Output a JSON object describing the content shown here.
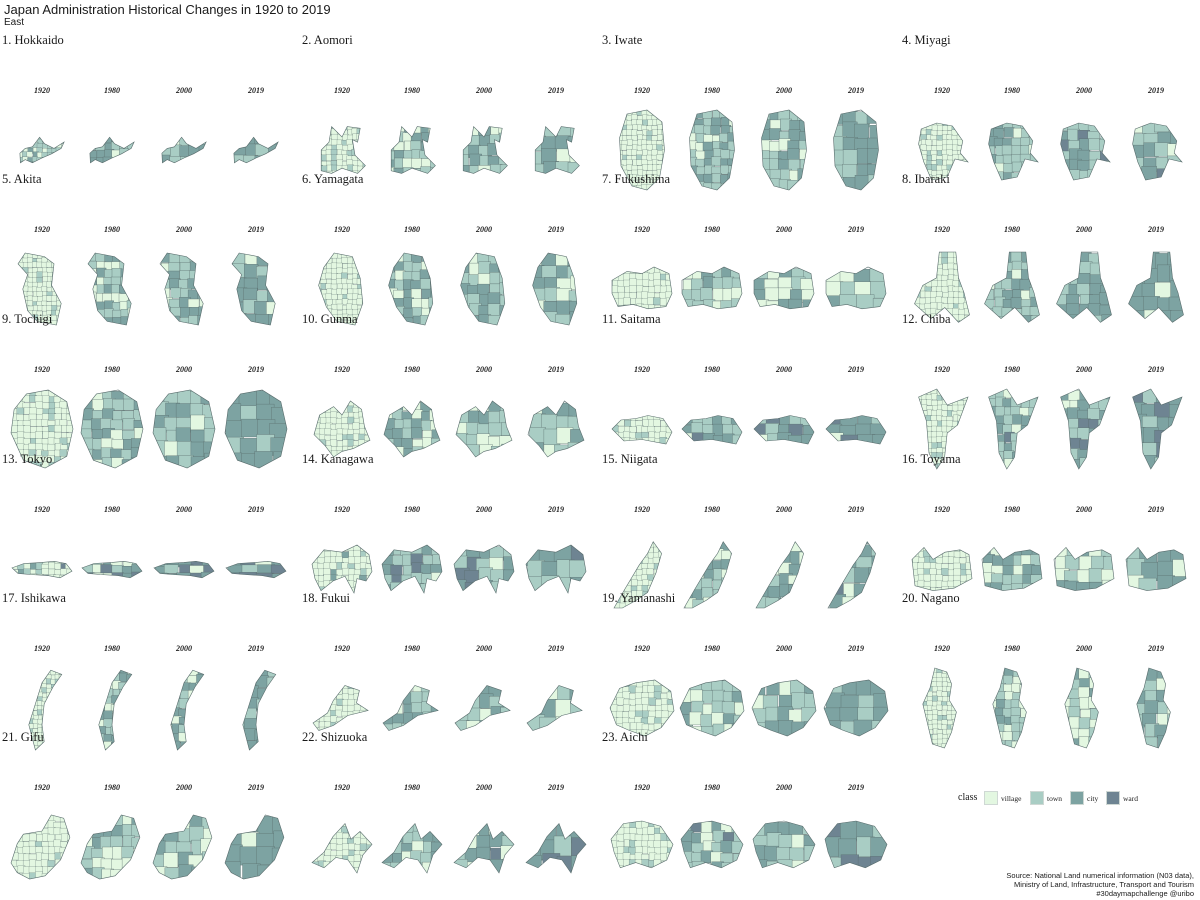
{
  "title": "Japan Administration Historical Changes in 1920 to 2019",
  "subtitle": "East",
  "years": [
    "1920",
    "1980",
    "2000",
    "2019"
  ],
  "colors": {
    "village": "#e3f7e1",
    "town": "#a9cdc4",
    "city": "#7da3a2",
    "ward": "#6e8492",
    "border": "#586c6c"
  },
  "legend": {
    "title": "class",
    "items": [
      {
        "key": "village",
        "label": "village"
      },
      {
        "key": "town",
        "label": "town"
      },
      {
        "key": "city",
        "label": "city"
      },
      {
        "key": "ward",
        "label": "ward"
      }
    ]
  },
  "prefectures": [
    {
      "label": "1. Hokkaido",
      "shape": "hokkaido",
      "mix": [
        [
          0.35,
          0.45,
          0.2,
          0
        ],
        [
          0.05,
          0.5,
          0.45,
          0
        ],
        [
          0.03,
          0.47,
          0.5,
          0
        ],
        [
          0.02,
          0.45,
          0.53,
          0
        ]
      ]
    },
    {
      "label": "2. Aomori",
      "shape": "aomori",
      "mix": [
        [
          0.8,
          0.2,
          0,
          0
        ],
        [
          0.35,
          0.45,
          0.2,
          0
        ],
        [
          0.3,
          0.45,
          0.25,
          0
        ],
        [
          0.1,
          0.5,
          0.4,
          0
        ]
      ]
    },
    {
      "label": "3. Iwate",
      "shape": "iwate",
      "mix": [
        [
          0.9,
          0.1,
          0,
          0
        ],
        [
          0.2,
          0.5,
          0.3,
          0
        ],
        [
          0.15,
          0.5,
          0.35,
          0
        ],
        [
          0.05,
          0.3,
          0.65,
          0
        ]
      ]
    },
    {
      "label": "4. Miyagi",
      "shape": "miyagi",
      "mix": [
        [
          0.85,
          0.15,
          0,
          0
        ],
        [
          0.1,
          0.6,
          0.3,
          0
        ],
        [
          0.05,
          0.55,
          0.35,
          0.05
        ],
        [
          0.02,
          0.4,
          0.5,
          0.08
        ]
      ]
    },
    {
      "label": "5. Akita",
      "shape": "akita",
      "mix": [
        [
          0.9,
          0.1,
          0,
          0
        ],
        [
          0.3,
          0.4,
          0.3,
          0
        ],
        [
          0.25,
          0.45,
          0.3,
          0
        ],
        [
          0.05,
          0.2,
          0.75,
          0
        ]
      ]
    },
    {
      "label": "6. Yamagata",
      "shape": "yamagata",
      "mix": [
        [
          0.9,
          0.1,
          0,
          0
        ],
        [
          0.2,
          0.5,
          0.3,
          0
        ],
        [
          0.2,
          0.5,
          0.3,
          0
        ],
        [
          0.1,
          0.45,
          0.45,
          0
        ]
      ]
    },
    {
      "label": "7. Fukushima",
      "shape": "fukushima",
      "mix": [
        [
          0.9,
          0.1,
          0,
          0
        ],
        [
          0.3,
          0.4,
          0.3,
          0
        ],
        [
          0.3,
          0.4,
          0.3,
          0
        ],
        [
          0.2,
          0.4,
          0.4,
          0
        ]
      ]
    },
    {
      "label": "8. Ibaraki",
      "shape": "ibaraki",
      "mix": [
        [
          0.9,
          0.1,
          0,
          0
        ],
        [
          0.2,
          0.5,
          0.3,
          0
        ],
        [
          0.15,
          0.45,
          0.4,
          0
        ],
        [
          0.05,
          0.2,
          0.75,
          0
        ]
      ]
    },
    {
      "label": "9. Tochigi",
      "shape": "tochigi",
      "mix": [
        [
          0.85,
          0.15,
          0,
          0
        ],
        [
          0.15,
          0.5,
          0.35,
          0
        ],
        [
          0.1,
          0.5,
          0.4,
          0
        ],
        [
          0.02,
          0.25,
          0.73,
          0
        ]
      ]
    },
    {
      "label": "10. Gunma",
      "shape": "gunma",
      "mix": [
        [
          0.9,
          0.1,
          0,
          0
        ],
        [
          0.3,
          0.45,
          0.25,
          0
        ],
        [
          0.3,
          0.45,
          0.25,
          0
        ],
        [
          0.15,
          0.45,
          0.4,
          0
        ]
      ]
    },
    {
      "label": "11. Saitama",
      "shape": "saitama",
      "mix": [
        [
          0.9,
          0.1,
          0,
          0
        ],
        [
          0.1,
          0.4,
          0.45,
          0.05
        ],
        [
          0.05,
          0.35,
          0.5,
          0.1
        ],
        [
          0.02,
          0.2,
          0.63,
          0.15
        ]
      ]
    },
    {
      "label": "12. Chiba",
      "shape": "chiba",
      "mix": [
        [
          0.85,
          0.15,
          0,
          0
        ],
        [
          0.1,
          0.45,
          0.4,
          0.05
        ],
        [
          0.05,
          0.4,
          0.45,
          0.1
        ],
        [
          0.02,
          0.2,
          0.65,
          0.13
        ]
      ]
    },
    {
      "label": "13. Tokyo",
      "shape": "tokyo",
      "mix": [
        [
          0.7,
          0.2,
          0.05,
          0.05
        ],
        [
          0.05,
          0.2,
          0.45,
          0.3
        ],
        [
          0.05,
          0.15,
          0.5,
          0.3
        ],
        [
          0.05,
          0.15,
          0.5,
          0.3
        ]
      ]
    },
    {
      "label": "14. Kanagawa",
      "shape": "kanagawa",
      "mix": [
        [
          0.8,
          0.15,
          0.05,
          0
        ],
        [
          0.05,
          0.45,
          0.3,
          0.2
        ],
        [
          0.05,
          0.4,
          0.35,
          0.2
        ],
        [
          0.02,
          0.3,
          0.4,
          0.28
        ]
      ]
    },
    {
      "label": "15. Niigata",
      "shape": "niigata",
      "mix": [
        [
          0.85,
          0.15,
          0,
          0
        ],
        [
          0.2,
          0.5,
          0.3,
          0
        ],
        [
          0.2,
          0.45,
          0.35,
          0
        ],
        [
          0.05,
          0.2,
          0.7,
          0.05
        ]
      ]
    },
    {
      "label": "16. Toyama",
      "shape": "toyama",
      "mix": [
        [
          0.85,
          0.15,
          0,
          0
        ],
        [
          0.2,
          0.4,
          0.4,
          0
        ],
        [
          0.15,
          0.4,
          0.45,
          0
        ],
        [
          0.05,
          0.15,
          0.8,
          0
        ]
      ]
    },
    {
      "label": "17. Ishikawa",
      "shape": "ishikawa",
      "mix": [
        [
          0.85,
          0.15,
          0,
          0
        ],
        [
          0.2,
          0.45,
          0.35,
          0
        ],
        [
          0.15,
          0.45,
          0.4,
          0
        ],
        [
          0.02,
          0.25,
          0.73,
          0
        ]
      ]
    },
    {
      "label": "18. Fukui",
      "shape": "fukui",
      "mix": [
        [
          0.85,
          0.15,
          0,
          0
        ],
        [
          0.2,
          0.5,
          0.3,
          0
        ],
        [
          0.2,
          0.5,
          0.3,
          0
        ],
        [
          0.05,
          0.4,
          0.55,
          0
        ]
      ]
    },
    {
      "label": "19. Yamanashi",
      "shape": "yamanashi",
      "mix": [
        [
          0.9,
          0.1,
          0,
          0
        ],
        [
          0.3,
          0.5,
          0.2,
          0
        ],
        [
          0.3,
          0.5,
          0.2,
          0
        ],
        [
          0.1,
          0.3,
          0.6,
          0
        ]
      ]
    },
    {
      "label": "20. Nagano",
      "shape": "nagano",
      "mix": [
        [
          0.9,
          0.1,
          0,
          0
        ],
        [
          0.4,
          0.4,
          0.2,
          0
        ],
        [
          0.4,
          0.4,
          0.2,
          0
        ],
        [
          0.25,
          0.4,
          0.35,
          0
        ]
      ]
    },
    {
      "label": "21. Gifu",
      "shape": "gifu",
      "mix": [
        [
          0.9,
          0.1,
          0,
          0
        ],
        [
          0.3,
          0.5,
          0.2,
          0
        ],
        [
          0.3,
          0.5,
          0.2,
          0
        ],
        [
          0.05,
          0.15,
          0.8,
          0
        ]
      ]
    },
    {
      "label": "22. Shizuoka",
      "shape": "shizuoka",
      "mix": [
        [
          0.85,
          0.15,
          0,
          0
        ],
        [
          0.15,
          0.45,
          0.4,
          0
        ],
        [
          0.1,
          0.45,
          0.4,
          0.05
        ],
        [
          0.05,
          0.25,
          0.55,
          0.15
        ]
      ]
    },
    {
      "label": "23. Aichi",
      "shape": "aichi",
      "mix": [
        [
          0.85,
          0.15,
          0,
          0
        ],
        [
          0.1,
          0.5,
          0.35,
          0.05
        ],
        [
          0.1,
          0.45,
          0.4,
          0.05
        ],
        [
          0.05,
          0.3,
          0.5,
          0.15
        ]
      ]
    }
  ],
  "source": [
    "Source: National Land numerical information (N03 data),",
    "Ministry of Land, Infrastructure, Transport and Tourism",
    "#30daymapchallenge @uribo"
  ]
}
